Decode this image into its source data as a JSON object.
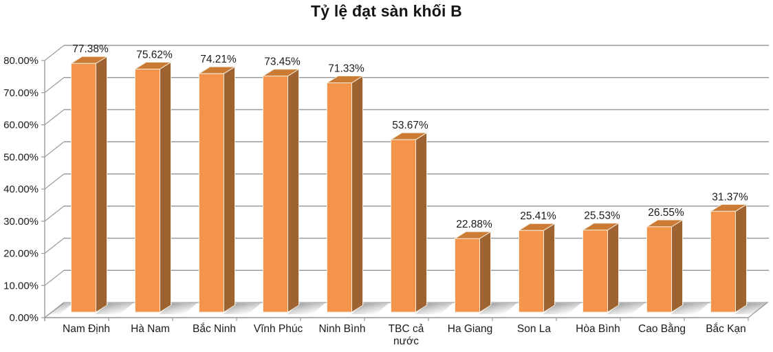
{
  "colors": {
    "background": "#FFFFFF",
    "bar_front": "#F4934A",
    "bar_side": "#9F6231",
    "bar_top": "#CB7B34",
    "bar_edge": "#F4EEDF",
    "grid": "#9B9B9B",
    "axis": "#9B9B9B",
    "text": "#1A1A1A",
    "shadow": "#6F6F6F"
  },
  "chart_data": {
    "type": "bar",
    "variant": "3d-column",
    "title": "Tỷ lệ đạt sàn khối B",
    "categories": [
      "Nam Định",
      "Hà Nam",
      "Bắc Ninh",
      "Vĩnh Phúc",
      "Ninh Bình",
      "TBC cả nước",
      "Ha Giang",
      "Son La",
      "Hòa Bình",
      "Cao Bằng",
      "Bắc Kạn"
    ],
    "values": [
      77.38,
      75.62,
      74.21,
      73.45,
      71.33,
      53.67,
      22.88,
      25.41,
      25.53,
      26.55,
      31.37
    ],
    "data_labels": [
      "77.38%",
      "75.62%",
      "74.21%",
      "73.45%",
      "71.33%",
      "53.67%",
      "22.88%",
      "25.41%",
      "25.53%",
      "26.55%",
      "31.37%"
    ],
    "xlabel": "",
    "ylabel": "",
    "ylim": [
      0,
      80
    ],
    "ytick_step": 10,
    "ytick_labels": [
      "0.00%",
      "10.00%",
      "20.00%",
      "30.00%",
      "40.00%",
      "50.00%",
      "60.00%",
      "70.00%",
      "80.00%"
    ],
    "grid": true,
    "legend": "none"
  }
}
